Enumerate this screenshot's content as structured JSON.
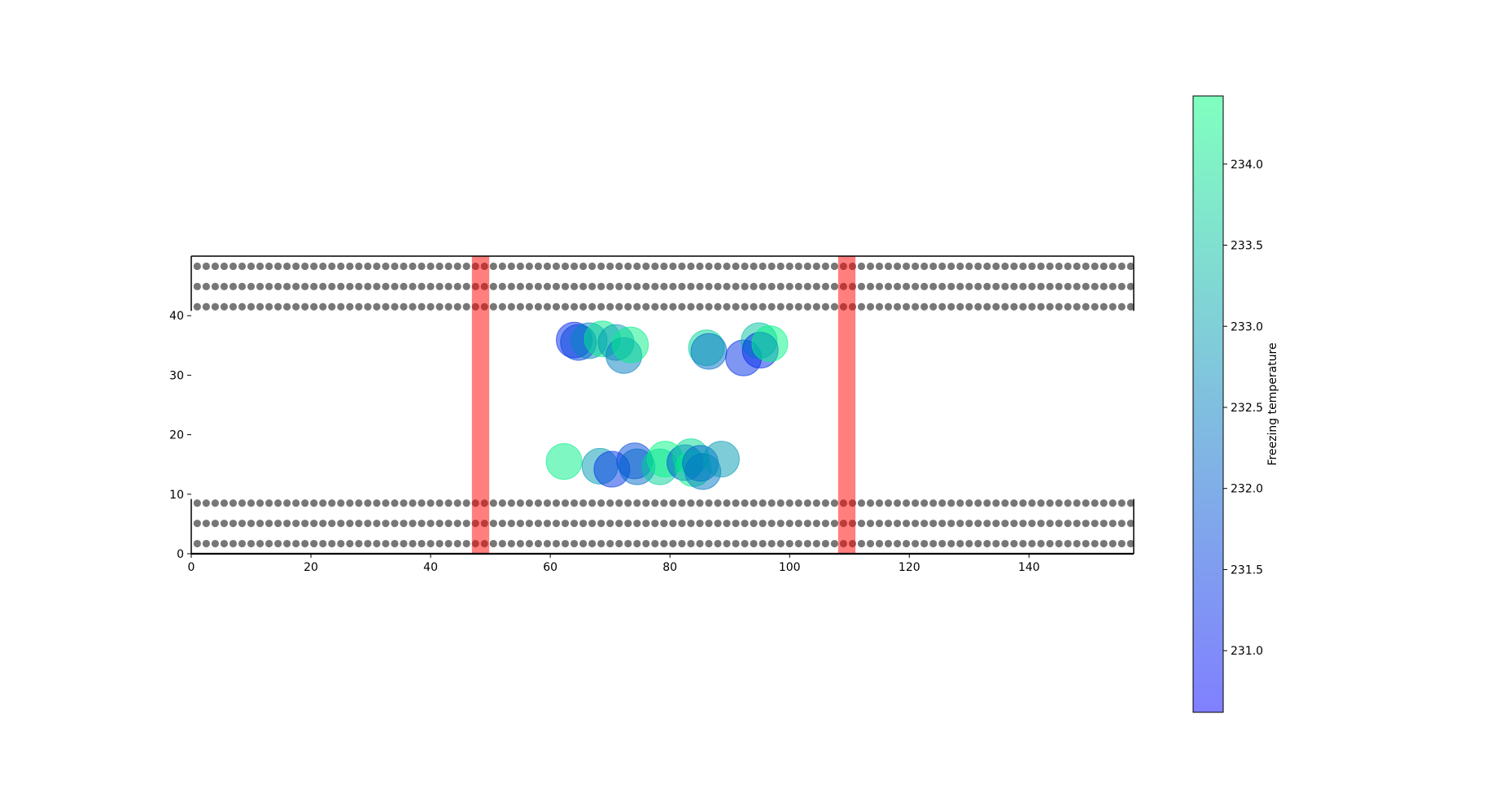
{
  "chart_data": {
    "type": "scatter",
    "title": "",
    "xlabel": "",
    "ylabel": "",
    "xlim": [
      0,
      157.5
    ],
    "ylim": [
      0,
      50
    ],
    "grid": false,
    "x_ticks": [
      0,
      20,
      40,
      60,
      80,
      100,
      120,
      140
    ],
    "y_ticks": [
      0,
      10,
      20,
      30,
      40
    ],
    "surface_atoms": {
      "color": "#555555",
      "rows_y": [
        1.7,
        5.1,
        8.5,
        41.5,
        44.9,
        48.3
      ],
      "x_start": 1.0,
      "x_step": 1.5,
      "count": 105
    },
    "slab_gap": {
      "y_from": 9.2,
      "y_to": 40.8
    },
    "red_bands": {
      "color": "#ff0000",
      "opacity": 0.5,
      "ranges": [
        [
          46.9,
          49.8
        ],
        [
          108.1,
          111.0
        ]
      ]
    },
    "freezing_sites": [
      {
        "x": 62.3,
        "y": 15.5,
        "t": 234.2
      },
      {
        "x": 64.0,
        "y": 35.9,
        "t": 231.2
      },
      {
        "x": 64.7,
        "y": 35.5,
        "t": 231.6
      },
      {
        "x": 66.5,
        "y": 35.8,
        "t": 232.6
      },
      {
        "x": 68.3,
        "y": 14.7,
        "t": 232.9
      },
      {
        "x": 68.7,
        "y": 36.1,
        "t": 234.1
      },
      {
        "x": 70.3,
        "y": 14.2,
        "t": 231.4
      },
      {
        "x": 71.0,
        "y": 35.5,
        "t": 232.9
      },
      {
        "x": 72.3,
        "y": 33.3,
        "t": 232.5
      },
      {
        "x": 73.4,
        "y": 35.1,
        "t": 234.2
      },
      {
        "x": 74.1,
        "y": 15.6,
        "t": 231.7
      },
      {
        "x": 74.5,
        "y": 14.6,
        "t": 232.2
      },
      {
        "x": 78.3,
        "y": 14.6,
        "t": 233.7
      },
      {
        "x": 79.2,
        "y": 15.9,
        "t": 234.3
      },
      {
        "x": 82.5,
        "y": 15.3,
        "t": 231.8
      },
      {
        "x": 83.5,
        "y": 16.3,
        "t": 233.9
      },
      {
        "x": 83.9,
        "y": 14.3,
        "t": 234.2
      },
      {
        "x": 85.1,
        "y": 15.2,
        "t": 232.0
      },
      {
        "x": 85.5,
        "y": 13.8,
        "t": 232.4
      },
      {
        "x": 86.1,
        "y": 34.6,
        "t": 233.8
      },
      {
        "x": 86.5,
        "y": 34.0,
        "t": 232.2
      },
      {
        "x": 88.6,
        "y": 15.9,
        "t": 232.9
      },
      {
        "x": 92.3,
        "y": 32.9,
        "t": 231.3
      },
      {
        "x": 94.9,
        "y": 35.8,
        "t": 233.5
      },
      {
        "x": 95.1,
        "y": 34.2,
        "t": 231.2
      },
      {
        "x": 96.7,
        "y": 35.3,
        "t": 234.3
      }
    ],
    "colorbar": {
      "label": "Freezing temperature",
      "min": 230.62,
      "max": 234.42,
      "ticks": [
        231.0,
        231.5,
        232.0,
        232.5,
        233.0,
        233.5,
        234.0
      ],
      "tick_labels": [
        "231.0",
        "231.5",
        "232.0",
        "232.5",
        "233.0",
        "233.5",
        "234.0"
      ],
      "color_low": "#0000ff",
      "color_high": "#00ff80",
      "alpha": 0.5
    }
  }
}
